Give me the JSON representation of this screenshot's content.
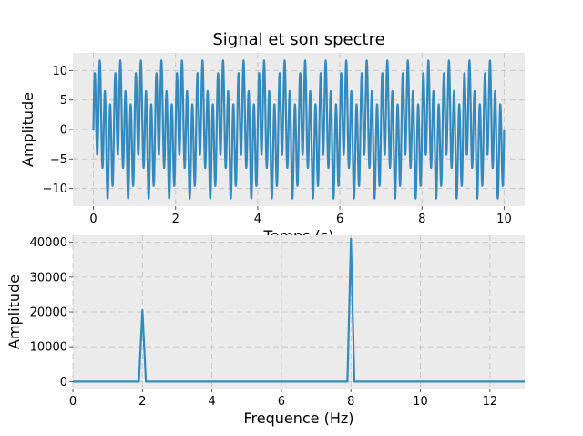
{
  "figure_title": "Signal et son spectre",
  "colors": {
    "series": "#348abd",
    "axes_background": "#ebebeb",
    "grid": "#c8c8c8"
  },
  "chart_data": [
    {
      "type": "line",
      "title": "",
      "xlabel": "Temps (s)",
      "ylabel": "Amplitude",
      "xlim": [
        -0.5,
        10.5
      ],
      "ylim": [
        -13,
        13
      ],
      "xticks": [
        0,
        2,
        4,
        6,
        8,
        10
      ],
      "yticks": [
        -10,
        -5,
        0,
        5,
        10
      ],
      "grid": true,
      "series": [
        {
          "signal_components": [
            {
              "frequency_hz": 2,
              "amplitude": 4
            },
            {
              "frequency_hz": 8,
              "amplitude": 8
            }
          ],
          "x_range": [
            0,
            10
          ]
        }
      ]
    },
    {
      "type": "line",
      "title": "",
      "xlabel": "Frequence (Hz)",
      "ylabel": "Amplitude",
      "xlim": [
        0,
        13
      ],
      "ylim": [
        -2000,
        42000
      ],
      "xticks": [
        0,
        2,
        4,
        6,
        8,
        10,
        12
      ],
      "yticks": [
        0,
        10000,
        20000,
        30000,
        40000
      ],
      "grid": true,
      "series": [
        {
          "x": [
            0,
            1.9,
            2.0,
            2.1,
            7.9,
            8.0,
            8.1,
            13
          ],
          "y": [
            0,
            0,
            20500,
            0,
            0,
            41000,
            0,
            0
          ]
        }
      ]
    }
  ]
}
